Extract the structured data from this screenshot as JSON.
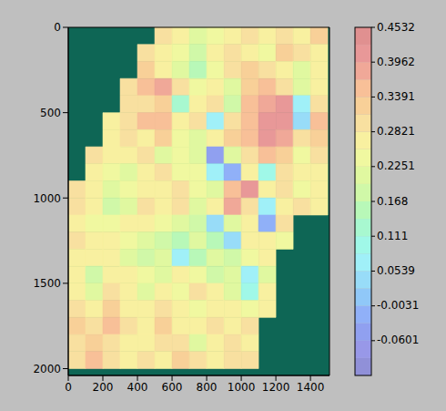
{
  "chart_data": {
    "type": "heatmap",
    "xlim": [
      0,
      1510
    ],
    "ylim": [
      2040,
      0
    ],
    "xticks": [
      0,
      200,
      400,
      600,
      800,
      1000,
      1200,
      1400
    ],
    "yticks": [
      0,
      500,
      1000,
      1500,
      2000
    ],
    "x_bins": [
      0,
      100,
      200,
      300,
      400,
      500,
      600,
      700,
      800,
      900,
      1000,
      1100,
      1200,
      1300,
      1400,
      1500
    ],
    "y_bins": [
      0,
      100,
      200,
      300,
      400,
      500,
      600,
      700,
      800,
      900,
      1000,
      1100,
      1200,
      1300,
      1400,
      1500,
      1600,
      1700,
      1800,
      1900,
      2000
    ],
    "values": [
      [
        null,
        null,
        null,
        null,
        null,
        0.3,
        0.28,
        0.22,
        0.25,
        0.28,
        0.3,
        0.26,
        0.3,
        0.28,
        0.33
      ],
      [
        null,
        null,
        null,
        null,
        0.3,
        0.27,
        0.24,
        0.18,
        0.26,
        0.3,
        0.28,
        0.25,
        0.32,
        0.3,
        0.28
      ],
      [
        null,
        null,
        null,
        null,
        0.32,
        0.28,
        0.2,
        0.15,
        0.24,
        0.3,
        0.33,
        0.3,
        0.26,
        0.22,
        0.27
      ],
      [
        null,
        null,
        null,
        0.3,
        0.34,
        0.38,
        0.3,
        0.24,
        0.28,
        0.2,
        0.32,
        0.36,
        0.3,
        0.2,
        0.28
      ],
      [
        null,
        null,
        null,
        0.29,
        0.31,
        0.32,
        0.12,
        0.28,
        0.3,
        0.18,
        0.34,
        0.38,
        0.4,
        0.08,
        0.3
      ],
      [
        null,
        null,
        0.28,
        0.3,
        0.34,
        0.36,
        0.26,
        0.3,
        0.06,
        0.3,
        0.36,
        0.4,
        0.42,
        0.04,
        0.34
      ],
      [
        null,
        null,
        0.27,
        0.29,
        0.28,
        0.32,
        0.25,
        0.22,
        0.28,
        0.32,
        0.34,
        0.42,
        0.38,
        0.3,
        0.32
      ],
      [
        null,
        0.3,
        0.28,
        0.26,
        0.3,
        0.2,
        0.24,
        0.2,
        -0.04,
        0.22,
        0.3,
        0.36,
        0.32,
        0.24,
        0.3
      ],
      [
        null,
        0.28,
        0.25,
        0.22,
        0.28,
        0.3,
        0.24,
        0.24,
        0.08,
        -0.01,
        0.28,
        0.1,
        0.3,
        0.28,
        0.26
      ],
      [
        0.3,
        0.26,
        0.2,
        0.24,
        0.28,
        0.26,
        0.3,
        0.24,
        0.22,
        0.34,
        0.4,
        0.26,
        0.3,
        0.24,
        0.28
      ],
      [
        0.29,
        0.27,
        0.17,
        0.2,
        0.3,
        0.28,
        0.3,
        0.22,
        0.26,
        0.38,
        0.3,
        0.06,
        0.28,
        0.3,
        0.26
      ],
      [
        0.27,
        0.25,
        0.24,
        0.28,
        0.26,
        0.24,
        0.2,
        0.18,
        0.04,
        0.22,
        0.26,
        -0.02,
        0.3,
        null,
        null
      ],
      [
        0.3,
        0.28,
        0.26,
        0.24,
        0.22,
        0.18,
        0.16,
        0.22,
        0.14,
        0.05,
        0.26,
        0.28,
        0.24,
        null,
        null
      ],
      [
        0.28,
        0.26,
        0.28,
        0.22,
        0.18,
        0.2,
        0.08,
        0.16,
        0.2,
        0.18,
        0.24,
        0.26,
        null,
        null,
        null
      ],
      [
        0.26,
        0.18,
        0.26,
        0.28,
        0.24,
        0.22,
        0.26,
        0.24,
        0.18,
        0.22,
        0.06,
        0.2,
        null,
        null,
        null
      ],
      [
        0.28,
        0.22,
        0.3,
        0.26,
        0.22,
        0.28,
        0.24,
        0.3,
        0.26,
        0.2,
        0.1,
        0.26,
        null,
        null,
        null
      ],
      [
        0.3,
        0.28,
        0.32,
        0.28,
        0.26,
        0.3,
        0.28,
        0.24,
        0.28,
        0.26,
        0.24,
        0.28,
        null,
        null,
        null
      ],
      [
        0.32,
        0.3,
        0.34,
        0.3,
        0.28,
        0.32,
        0.28,
        0.26,
        0.3,
        0.28,
        0.3,
        null,
        null,
        null,
        null
      ],
      [
        0.3,
        0.33,
        0.3,
        0.28,
        0.26,
        0.3,
        0.3,
        0.22,
        0.28,
        0.3,
        0.28,
        null,
        null,
        null,
        null
      ],
      [
        0.31,
        0.34,
        0.3,
        0.28,
        0.3,
        0.28,
        0.32,
        0.3,
        0.28,
        0.3,
        0.3,
        null,
        null,
        null,
        null
      ]
    ],
    "colorbar": {
      "range": [
        -0.1171,
        0.4532
      ],
      "ticks": [
        -0.0601,
        -0.0031,
        0.0539,
        0.111,
        0.168,
        0.2251,
        0.2821,
        0.3391,
        0.3962,
        0.4532
      ],
      "colors": [
        "#9090d8",
        "#9898e8",
        "#90a0f0",
        "#90b0f8",
        "#90c8f8",
        "#98dcf8",
        "#a0f0f8",
        "#a0f8e8",
        "#a8f8d0",
        "#b8f8b8",
        "#d0f8a8",
        "#e0f8a0",
        "#f0f8a0",
        "#f8f0a0",
        "#f8e0a0",
        "#f8d098",
        "#f8c098",
        "#f0a898",
        "#e89898",
        "#e09090"
      ]
    }
  }
}
